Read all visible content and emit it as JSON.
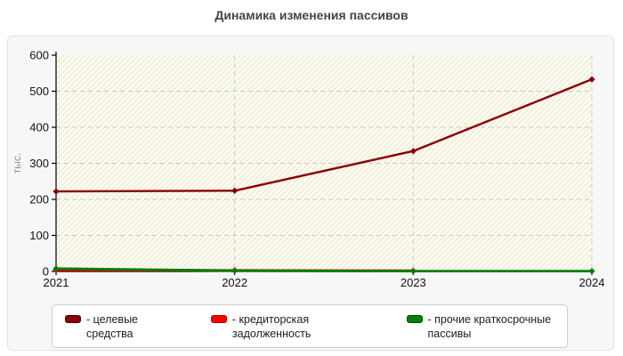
{
  "page": {
    "title": "Динамика изменения пассивов"
  },
  "colors": {
    "title": "#454545",
    "panel_bg": "#f7f7f7",
    "panel_border": "#e3e3e3",
    "plot_bg": "#fdfdf4",
    "hatch_line": "#f0efdb",
    "grid": "#c9c9c9",
    "axis": "#000000",
    "tick_label": "#111111",
    "unit_label": "#8f8f8f",
    "series_dark_red": "#8b0000",
    "series_red": "#ee0000",
    "series_green": "#007f00"
  },
  "chart_data": {
    "type": "line",
    "title": "Динамика изменения пассивов",
    "xlabel": "",
    "ylabel": "тыс.",
    "categories": [
      "2021",
      "2022",
      "2023",
      "2024"
    ],
    "yticks": [
      0,
      100,
      200,
      300,
      400,
      500,
      600
    ],
    "ylim": [
      0,
      600
    ],
    "grid": true,
    "legend_position": "bottom",
    "series": [
      {
        "name": "целевые средства",
        "color": "#8b0000",
        "marker": "diamond",
        "values": [
          222,
          224,
          334,
          533
        ]
      },
      {
        "name": "кредиторская задолженность",
        "color": "#ee0000",
        "marker": "diamond",
        "values": [
          4,
          3,
          2,
          null
        ]
      },
      {
        "name": "прочие краткосрочные пассивы",
        "color": "#007f00",
        "marker": "diamond",
        "values": [
          8,
          2,
          1,
          1
        ]
      }
    ]
  },
  "legend": {
    "items": [
      {
        "label": "- целевые средства",
        "swatch_color": "#8b0000",
        "swatch_border": "#550000"
      },
      {
        "label": "- кредиторская задолженность",
        "swatch_color": "#ff0000",
        "swatch_border": "#aa0000"
      },
      {
        "label": "- прочие краткосрочные пассивы",
        "swatch_color": "#008000",
        "swatch_border": "#004d00"
      }
    ]
  }
}
